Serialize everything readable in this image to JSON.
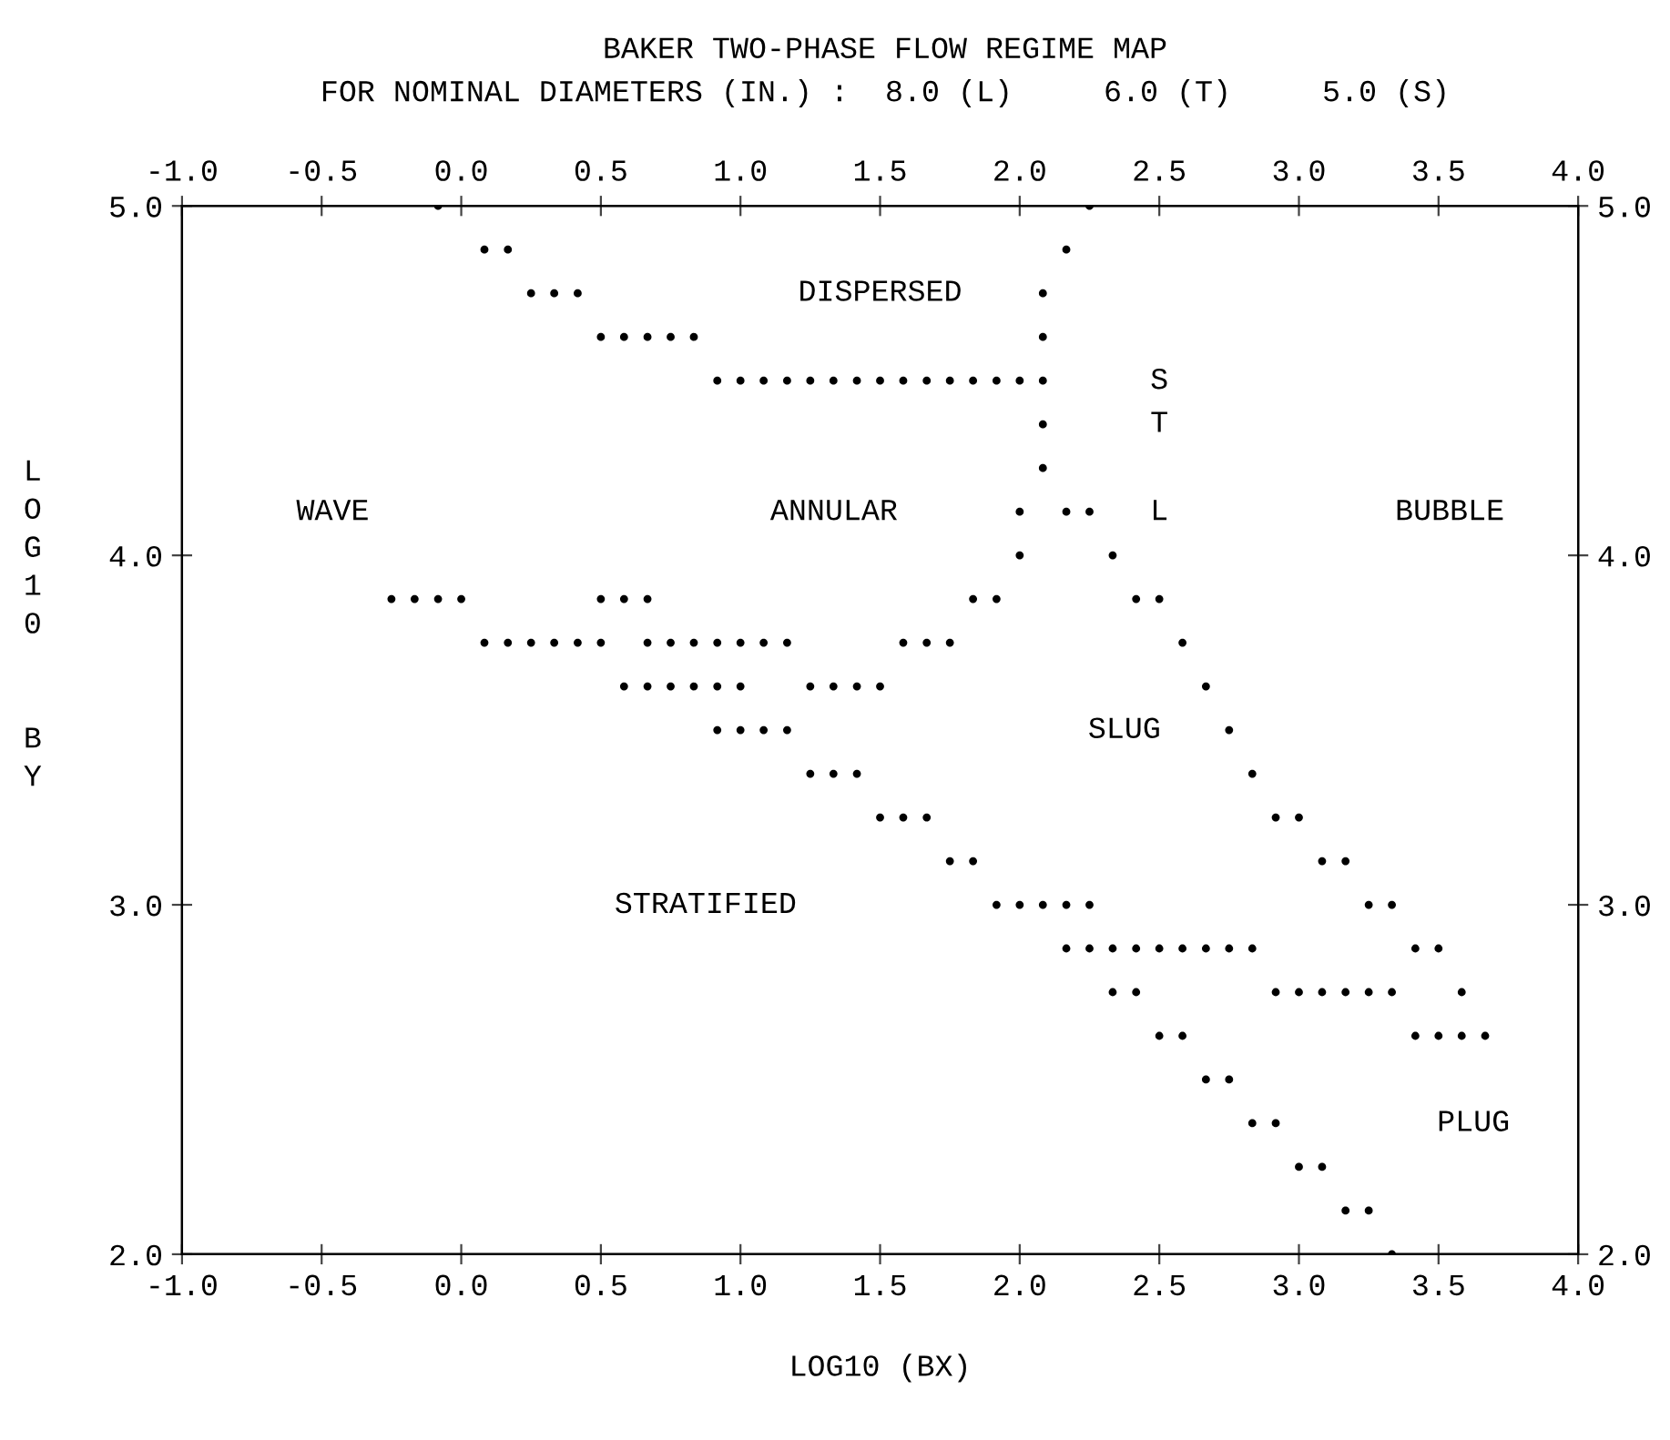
{
  "chart_data": {
    "type": "scatter",
    "title": "BAKER TWO-PHASE FLOW REGIME MAP",
    "subtitle": "FOR NOMINAL DIAMETERS (IN.) :  8.0 (L)     6.0 (T)     5.0 (S)",
    "xlabel": "LOG10 (BX)",
    "ylabel": "LOG10  BY",
    "xlim": [
      -1,
      4
    ],
    "ylim": [
      2,
      5
    ],
    "x2lim": [
      -1,
      4
    ],
    "y2lim": [
      2,
      5
    ],
    "xticks": [
      {
        "value": -1,
        "label": "-1.0"
      },
      -0.5,
      {
        "value": 0,
        "label": "0.0"
      },
      0.5,
      {
        "value": 1,
        "label": "1.0"
      },
      1.5,
      {
        "value": 2,
        "label": "2.0"
      },
      2.5,
      {
        "value": 3,
        "label": "3.0"
      },
      3.5,
      {
        "value": 4,
        "label": "4.0"
      }
    ],
    "x2ticks": [
      {
        "value": -1,
        "label": "-1.0"
      },
      -0.5,
      {
        "value": 0,
        "label": "0.0"
      },
      0.5,
      {
        "value": 1,
        "label": "1.0"
      },
      1.5,
      {
        "value": 2,
        "label": "2.0"
      },
      2.5,
      {
        "value": 3,
        "label": "3.0"
      },
      3.5,
      {
        "value": 4,
        "label": "4.0"
      }
    ],
    "yticks": [
      {
        "value": 2,
        "label": "2.0"
      },
      {
        "value": 3,
        "label": "3.0"
      },
      {
        "value": 4,
        "label": "4.0"
      },
      {
        "value": 5,
        "label": "5.0"
      }
    ],
    "y2ticks": [
      {
        "value": 2,
        "label": "2.0"
      },
      {
        "value": 3,
        "label": "3.0"
      },
      {
        "value": 4,
        "label": "4.0"
      },
      {
        "value": 5,
        "label": "5.0"
      }
    ],
    "marker": "circle",
    "grid": false,
    "legend": false,
    "series": [
      {
        "color": "#000000",
        "x": [
          -0.083,
          2.25,
          0.083,
          0.167,
          2.167,
          0.25,
          0.333,
          0.417,
          2.083,
          0.5,
          0.583,
          0.667,
          0.75,
          0.833,
          2.083,
          0.917,
          1.0,
          1.083,
          1.167,
          1.25,
          1.333,
          1.417,
          1.5,
          1.583,
          1.667,
          1.75,
          1.833,
          1.917,
          2.0,
          2.083,
          2.083,
          2.083,
          2.0,
          2.167,
          2.25,
          2.0,
          2.333,
          -0.25,
          -0.167,
          -0.083,
          0.0,
          0.5,
          0.583,
          0.667,
          1.833,
          1.917,
          2.417,
          2.5,
          0.083,
          0.167,
          0.25,
          0.333,
          0.417,
          0.5,
          0.667,
          0.75,
          0.833,
          0.917,
          1.0,
          1.083,
          1.167,
          1.583,
          1.667,
          1.75,
          2.583,
          0.583,
          0.667,
          0.75,
          0.833,
          0.917,
          1.0,
          1.25,
          1.333,
          1.417,
          1.5,
          2.667,
          0.917,
          1.0,
          1.083,
          1.167,
          2.75,
          1.25,
          1.333,
          1.417,
          2.833,
          1.5,
          1.583,
          1.667,
          2.917,
          3.0,
          1.75,
          1.833,
          3.083,
          3.167,
          1.917,
          2.0,
          2.083,
          2.167,
          2.25,
          3.25,
          3.333,
          2.167,
          2.25,
          2.333,
          2.417,
          2.5,
          2.583,
          2.667,
          2.75,
          2.833,
          3.417,
          3.5,
          2.333,
          2.417,
          2.917,
          3.0,
          3.083,
          3.167,
          3.25,
          3.333,
          3.583,
          2.5,
          2.583,
          3.417,
          3.5,
          3.583,
          3.667,
          2.667,
          2.75,
          2.833,
          2.917,
          3.0,
          3.083,
          3.167,
          3.25,
          3.333
        ],
        "values": [
          5.0,
          5.0,
          4.875,
          4.875,
          4.875,
          4.75,
          4.75,
          4.75,
          4.75,
          4.625,
          4.625,
          4.625,
          4.625,
          4.625,
          4.625,
          4.5,
          4.5,
          4.5,
          4.5,
          4.5,
          4.5,
          4.5,
          4.5,
          4.5,
          4.5,
          4.5,
          4.5,
          4.5,
          4.5,
          4.5,
          4.375,
          4.25,
          4.125,
          4.125,
          4.125,
          4.0,
          4.0,
          3.875,
          3.875,
          3.875,
          3.875,
          3.875,
          3.875,
          3.875,
          3.875,
          3.875,
          3.875,
          3.875,
          3.75,
          3.75,
          3.75,
          3.75,
          3.75,
          3.75,
          3.75,
          3.75,
          3.75,
          3.75,
          3.75,
          3.75,
          3.75,
          3.75,
          3.75,
          3.75,
          3.75,
          3.625,
          3.625,
          3.625,
          3.625,
          3.625,
          3.625,
          3.625,
          3.625,
          3.625,
          3.625,
          3.625,
          3.5,
          3.5,
          3.5,
          3.5,
          3.5,
          3.375,
          3.375,
          3.375,
          3.375,
          3.25,
          3.25,
          3.25,
          3.25,
          3.25,
          3.125,
          3.125,
          3.125,
          3.125,
          3.0,
          3.0,
          3.0,
          3.0,
          3.0,
          3.0,
          3.0,
          2.875,
          2.875,
          2.875,
          2.875,
          2.875,
          2.875,
          2.875,
          2.875,
          2.875,
          2.875,
          2.875,
          2.75,
          2.75,
          2.75,
          2.75,
          2.75,
          2.75,
          2.75,
          2.75,
          2.75,
          2.625,
          2.625,
          2.625,
          2.625,
          2.625,
          2.625,
          2.5,
          2.5,
          2.375,
          2.375,
          2.25,
          2.25,
          2.125,
          2.125,
          2.0
        ]
      }
    ],
    "annotations": [
      "DISPERSED",
      "S",
      "T",
      "WAVE",
      "ANNULAR",
      "L",
      "BUBBLE",
      "SLUG",
      "STRATIFIED",
      "PLUG"
    ]
  }
}
